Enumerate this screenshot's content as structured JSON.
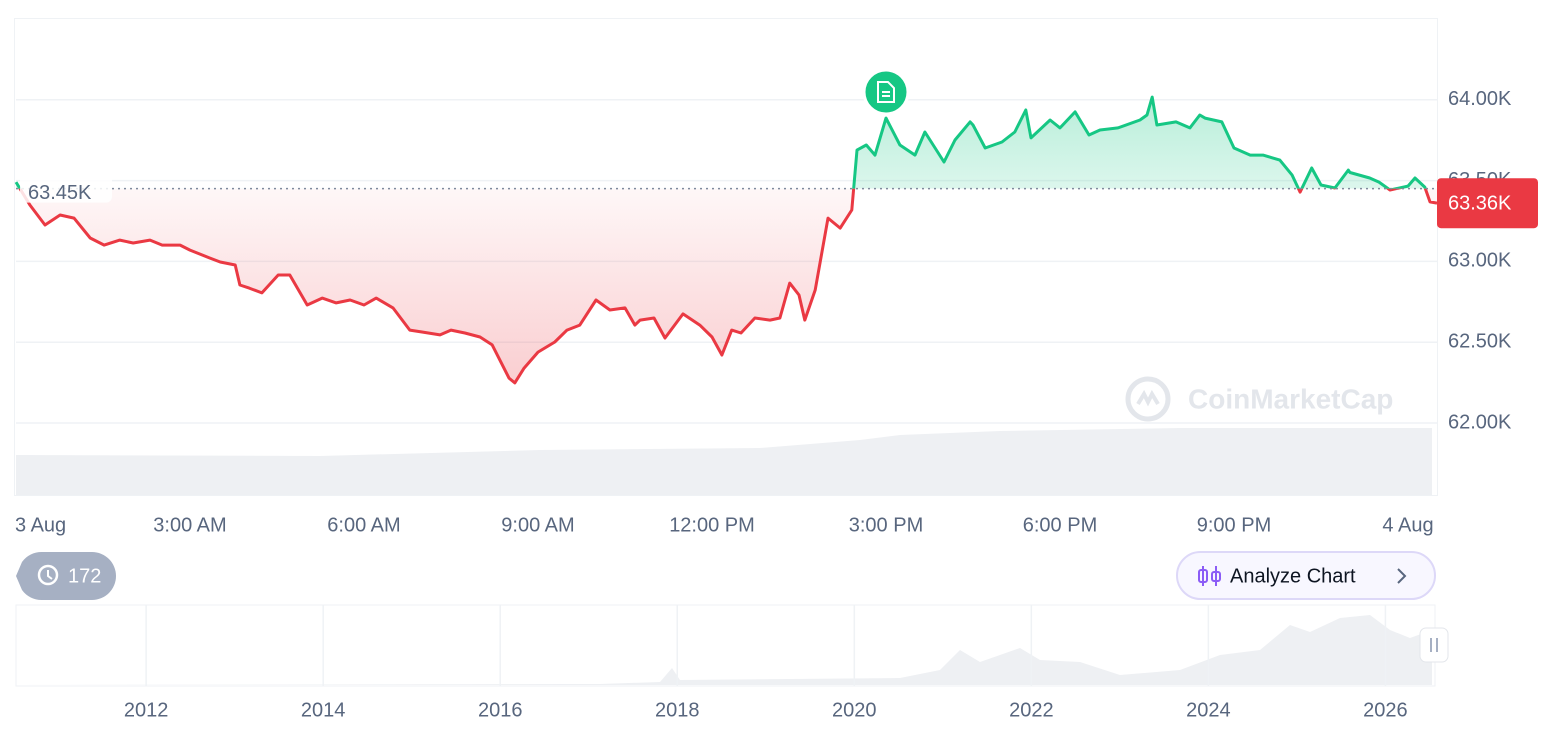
{
  "chart_data": {
    "type": "baseline-line",
    "x": [
      0,
      0.24,
      0.5,
      0.76,
      1,
      1.28,
      1.52,
      1.79,
      2.02,
      2.31,
      2.52,
      2.83,
      3,
      3.34,
      3.52,
      3.78,
      3.86,
      4.02,
      4.24,
      4.52,
      4.72,
      5.02,
      5.28,
      5.52,
      5.76,
      6,
      6.21,
      6.5,
      6.79,
      7,
      7.31,
      7.5,
      7.74,
      8,
      8.21,
      8.5,
      8.6,
      8.76,
      9,
      9.29,
      9.5,
      9.72,
      10,
      10.24,
      10.5,
      10.67,
      10.76,
      11,
      11.19,
      11.5,
      11.79,
      12,
      12.17,
      12.34,
      12.5,
      12.74,
      13,
      13.17,
      13.34,
      13.5,
      13.6,
      13.78,
      14,
      14.21,
      14.41,
      14.5,
      14.66,
      14.81,
      15,
      15.24,
      15.5,
      15.67,
      16,
      16.19,
      16.45,
      16.5,
      16.71,
      17,
      17.22,
      17.41,
      17.5,
      17.83,
      18,
      18.26,
      18.5,
      18.69,
      19,
      19.38,
      19.5,
      19.59,
      19.67,
      20,
      20.24,
      20.41,
      20.5,
      20.79,
      21,
      21.28,
      21.5,
      21.79,
      22,
      22.14,
      22.34,
      22.5,
      22.74,
      22.97,
      23,
      23.34,
      23.5,
      23.69,
      24,
      24.12,
      24.29,
      24.38,
      24.5
    ],
    "values": [
      63491,
      63349,
      63225,
      63287,
      63268,
      63145,
      63101,
      63132,
      63114,
      63132,
      63101,
      63101,
      63070,
      63021,
      62996,
      62978,
      62854,
      62835,
      62805,
      62916,
      62916,
      62730,
      62773,
      62743,
      62761,
      62730,
      62773,
      62712,
      62575,
      62563,
      62545,
      62575,
      62557,
      62532,
      62483,
      62278,
      62248,
      62340,
      62439,
      62501,
      62575,
      62606,
      62761,
      62699,
      62712,
      62606,
      62637,
      62650,
      62526,
      62675,
      62606,
      62532,
      62421,
      62575,
      62557,
      62650,
      62637,
      62650,
      62866,
      62792,
      62637,
      62823,
      63268,
      63206,
      63318,
      63689,
      63720,
      63658,
      63887,
      63720,
      63658,
      63801,
      63615,
      63751,
      63863,
      63844,
      63702,
      63739,
      63801,
      63937,
      63764,
      63875,
      63826,
      63925,
      63782,
      63813,
      63826,
      63875,
      63906,
      64017,
      63844,
      63863,
      63826,
      63906,
      63887,
      63863,
      63702,
      63658,
      63658,
      63627,
      63535,
      63429,
      63578,
      63473,
      63454,
      63565,
      63550,
      63516,
      63491,
      63442,
      63466,
      63516,
      63460,
      63368,
      63361
    ],
    "up_color": "#16c784",
    "down_color": "#ea3943",
    "xlim": [
      0,
      24.5
    ],
    "xticks": [
      {
        "value": 0,
        "label": "3 Aug"
      },
      {
        "value": 3,
        "label": "3:00 AM"
      },
      {
        "value": 6,
        "label": "6:00 AM"
      },
      {
        "value": 9,
        "label": "9:00 AM"
      },
      {
        "value": 12,
        "label": "12:00 PM"
      },
      {
        "value": 15,
        "label": "3:00 PM"
      },
      {
        "value": 18,
        "label": "6:00 PM"
      },
      {
        "value": 21,
        "label": "9:00 PM"
      },
      {
        "value": 24,
        "label": "4 Aug"
      }
    ],
    "ylim": [
      62000,
      64500
    ],
    "yticks": [
      {
        "value": 62000,
        "label": "62.00K"
      },
      {
        "value": 62500,
        "label": "62.50K"
      },
      {
        "value": 63000,
        "label": "63.00K"
      },
      {
        "value": 63500,
        "label": "63.50K"
      },
      {
        "value": 64000,
        "label": "64.00K"
      }
    ],
    "grid": true,
    "baseline": {
      "value": 63450,
      "label": "63.45K"
    },
    "last_price": {
      "value": 63360,
      "label": "63.36K"
    },
    "watermark": "CoinMarketCap",
    "history_count": 172,
    "analyze_button": "Analyze Chart",
    "navigator": {
      "xlim": [
        2010.53,
        2026.56
      ],
      "xticks": [
        2012,
        2014,
        2016,
        2018,
        2020,
        2022,
        2024,
        2026
      ]
    }
  }
}
